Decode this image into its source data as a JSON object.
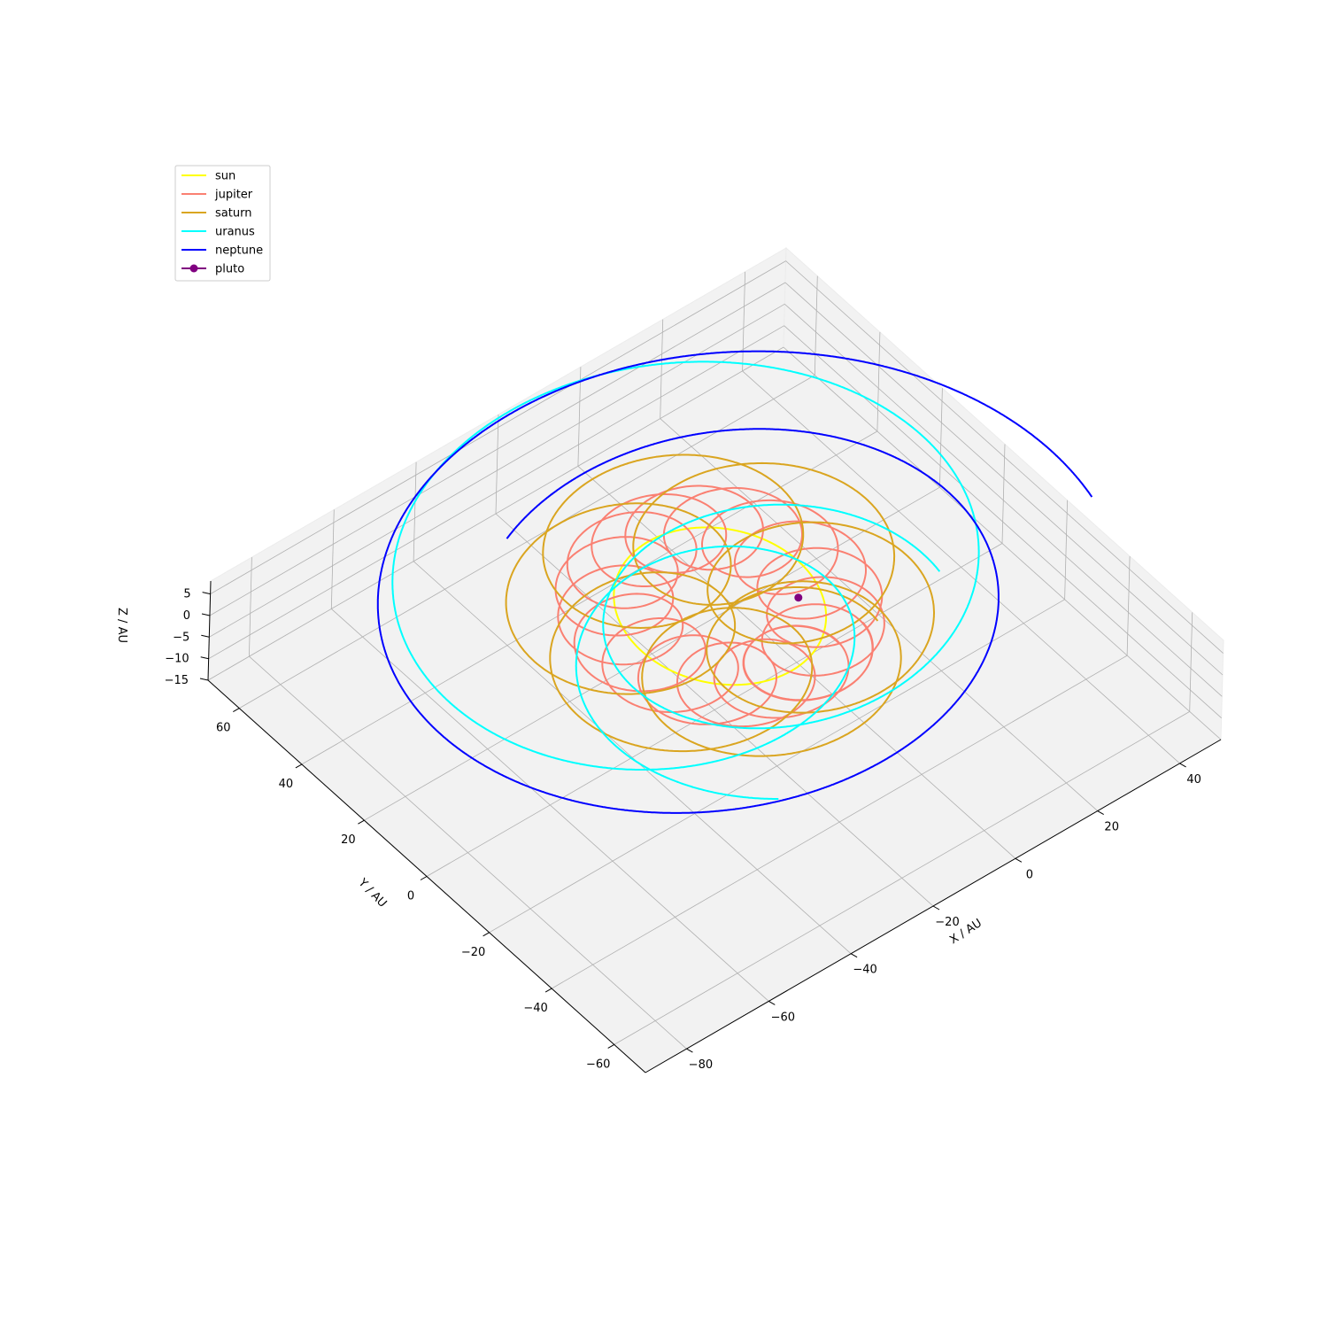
{
  "chart_data": {
    "type": "line",
    "title": "",
    "projection": "3d",
    "xlabel": "X / AU",
    "ylabel": "Y / AU",
    "zlabel": "Z / AU",
    "xlim": [
      -90,
      50
    ],
    "ylim": [
      -70,
      70
    ],
    "zlim": [
      -15,
      8
    ],
    "x_ticks": [
      "−80",
      "−60",
      "−40",
      "−20",
      "0",
      "20",
      "40"
    ],
    "y_ticks": [
      "−60",
      "−40",
      "−20",
      "0",
      "20",
      "40",
      "60"
    ],
    "z_ticks": [
      "−15",
      "−10",
      "−5",
      "0",
      "5"
    ],
    "grid": true,
    "legend": {
      "placement": "top-left",
      "entries": [
        "sun",
        "jupiter",
        "saturn",
        "uranus",
        "neptune",
        "pluto"
      ]
    },
    "colors": {
      "sun": "#ffff00",
      "jupiter": "#fa8072",
      "saturn": "#daa520",
      "uranus": "#00ffff",
      "neptune": "#0000ff",
      "pluto": "#800080"
    },
    "series": [
      {
        "name": "sun",
        "color": "#ffff00",
        "kind": "line",
        "drift_x": [
          -13,
          13
        ],
        "drift_y": [
          -16,
          16
        ],
        "radius": 0,
        "loops": 0,
        "epicycle": 0,
        "epicycle_phase": 0
      },
      {
        "name": "jupiter",
        "color": "#fa8072",
        "kind": "line",
        "drift_x": [
          -13,
          13
        ],
        "drift_y": [
          -16,
          16
        ],
        "radius": 5.2,
        "loops": 18,
        "epicycle": 0,
        "epicycle_phase": 0
      },
      {
        "name": "saturn",
        "color": "#daa520",
        "kind": "line",
        "drift_x": [
          -13,
          13
        ],
        "drift_y": [
          -16,
          16
        ],
        "radius": 9.5,
        "loops": 7.3,
        "epicycle": 0,
        "epicycle_phase": 0
      },
      {
        "name": "uranus",
        "color": "#00ffff",
        "kind": "line",
        "drift_x": [
          -13,
          13
        ],
        "drift_y": [
          -16,
          16
        ],
        "radius": 19.2,
        "loops": 2.6,
        "epicycle": 5,
        "epicycle_phase": 0.4
      },
      {
        "name": "neptune",
        "color": "#0000ff",
        "kind": "line",
        "drift_x": [
          -13,
          13
        ],
        "drift_y": [
          -16,
          16
        ],
        "radius": 30,
        "loops": 1.3,
        "epicycle": 7,
        "epicycle_phase": 0
      },
      {
        "name": "pluto",
        "color": "#800080",
        "kind": "point",
        "x": 0,
        "y": 0,
        "z": 0
      }
    ]
  }
}
